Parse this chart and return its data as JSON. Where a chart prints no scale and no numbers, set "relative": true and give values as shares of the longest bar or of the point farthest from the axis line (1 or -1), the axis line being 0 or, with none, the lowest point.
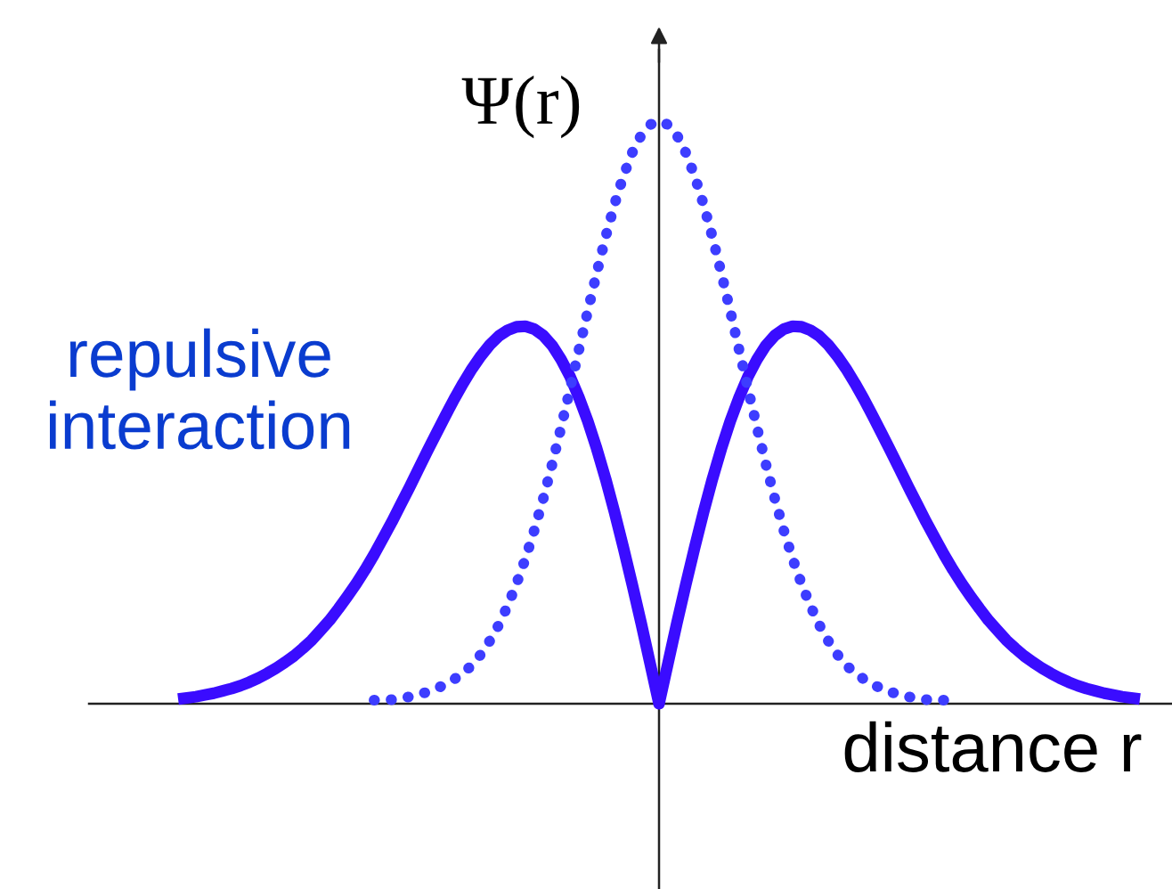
{
  "chart_data": {
    "type": "line",
    "relative": true,
    "ylabel": "Ψ(r)",
    "xlabel": "distance r",
    "categories": [
      null,
      null,
      null,
      null,
      null,
      null,
      null,
      null,
      null,
      null,
      null,
      null,
      null,
      null,
      null,
      null,
      null,
      null,
      null,
      null,
      null,
      null,
      null,
      null,
      null,
      null,
      null,
      null,
      null,
      null,
      null,
      null,
      null,
      null,
      null,
      null,
      null,
      null,
      null,
      null,
      null,
      null,
      null,
      null,
      null,
      null,
      null,
      null,
      null,
      null,
      null,
      null,
      null,
      null,
      null,
      null,
      null,
      null,
      null,
      null,
      null,
      null,
      null,
      null,
      null,
      null,
      null,
      null,
      null,
      null,
      null,
      null,
      null,
      null,
      null,
      null,
      null,
      null,
      null,
      null,
      null,
      null,
      null,
      null,
      null,
      null,
      null,
      null,
      null,
      null,
      null,
      null,
      null,
      null,
      null,
      null,
      null,
      null,
      null,
      null,
      null,
      null,
      null,
      null,
      null,
      null,
      null,
      null,
      null
    ],
    "series": [
      {
        "name": "repulsive interaction",
        "color": "#3a0cff",
        "line_style": "solid",
        "values": [
          0.008,
          0.01,
          0.012,
          0.015,
          0.018,
          0.022,
          0.026,
          0.031,
          0.037,
          0.044,
          0.052,
          0.061,
          0.071,
          0.082,
          0.095,
          0.109,
          0.126,
          0.143,
          0.163,
          0.184,
          0.206,
          0.23,
          0.256,
          0.284,
          0.312,
          0.342,
          0.372,
          0.403,
          0.434,
          0.464,
          0.494,
          0.523,
          0.55,
          0.575,
          0.597,
          0.616,
          0.631,
          0.641,
          0.647,
          0.648,
          0.643,
          0.632,
          0.615,
          0.591,
          0.562,
          0.526,
          0.485,
          0.438,
          0.386,
          0.329,
          0.268,
          0.204,
          0.138,
          0.069,
          0,
          0.069,
          0.138,
          0.204,
          0.268,
          0.329,
          0.386,
          0.438,
          0.485,
          0.526,
          0.562,
          0.591,
          0.615,
          0.632,
          0.643,
          0.648,
          0.647,
          0.641,
          0.631,
          0.616,
          0.597,
          0.575,
          0.55,
          0.523,
          0.494,
          0.464,
          0.434,
          0.403,
          0.372,
          0.342,
          0.312,
          0.284,
          0.256,
          0.23,
          0.206,
          0.184,
          0.163,
          0.143,
          0.126,
          0.109,
          0.095,
          0.082,
          0.071,
          0.061,
          0.052,
          0.044,
          0.037,
          0.031,
          0.026,
          0.022,
          0.018,
          0.015,
          0.012,
          0.01,
          0.008
        ]
      },
      {
        "color": "#3d3dff",
        "line_style": "dotted",
        "values": [
          null,
          null,
          null,
          null,
          null,
          null,
          null,
          null,
          null,
          null,
          null,
          null,
          null,
          null,
          null,
          null,
          null,
          null,
          null,
          null,
          null,
          null,
          0.006,
          0.006,
          0.007,
          0.009,
          0.012,
          0.016,
          0.02,
          0.026,
          0.033,
          0.042,
          0.053,
          0.066,
          0.085,
          0.108,
          0.135,
          0.168,
          0.206,
          0.249,
          0.298,
          0.352,
          0.411,
          0.474,
          0.54,
          0.607,
          0.674,
          0.739,
          0.801,
          0.857,
          0.906,
          0.946,
          0.976,
          0.994,
          1.0,
          0.994,
          0.976,
          0.946,
          0.906,
          0.857,
          0.801,
          0.739,
          0.674,
          0.607,
          0.54,
          0.474,
          0.411,
          0.352,
          0.298,
          0.249,
          0.206,
          0.168,
          0.135,
          0.108,
          0.085,
          0.066,
          0.053,
          0.042,
          0.033,
          0.026,
          0.02,
          0.016,
          0.012,
          0.009,
          0.007,
          0.006,
          0.006,
          null,
          null,
          null,
          null,
          null,
          null,
          null,
          null,
          null,
          null,
          null,
          null,
          null,
          null,
          null,
          null,
          null,
          null,
          null,
          null,
          null,
          null
        ]
      }
    ]
  }
}
